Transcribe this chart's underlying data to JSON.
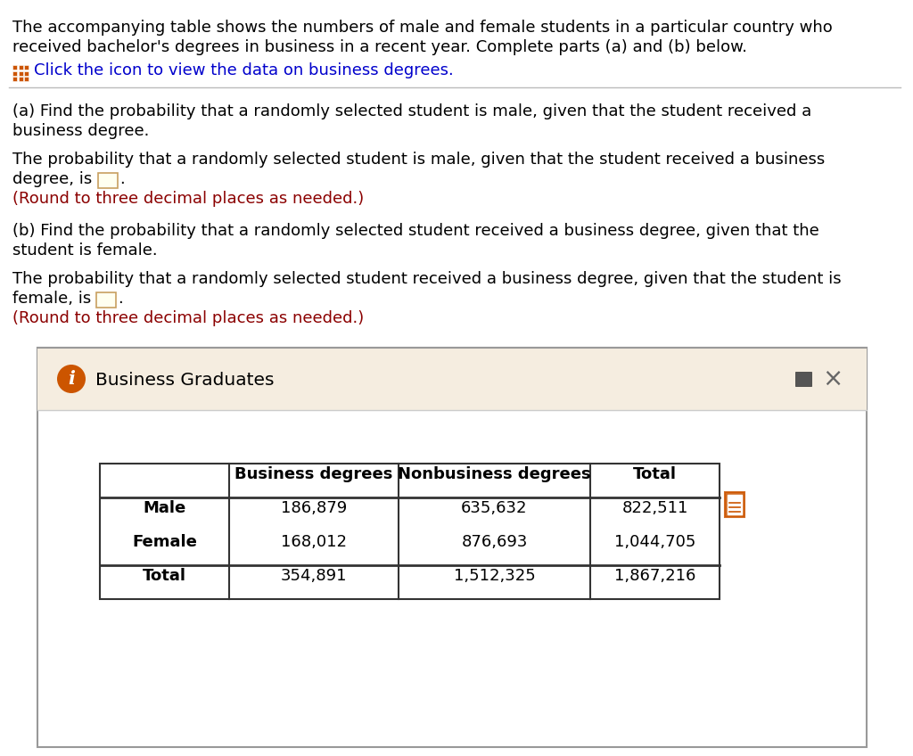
{
  "background_color": "#ffffff",
  "black_color": "#000000",
  "red_color": "#8b0000",
  "icon_orange": "#cc5500",
  "separator_color": "#bbbbbb",
  "dialog_border": "#aaaaaa",
  "dialog_title_bg": "#f5ede0",
  "table_border_color": "#333333",
  "header_line1": "The accompanying table shows the numbers of male and female students in a particular country who",
  "header_line2": "received bachelor's degrees in business in a recent year. Complete parts (a) and (b) below.",
  "icon_text": "Click the icon to view the data on business degrees.",
  "part_a_q_line1": "(a) Find the probability that a randomly selected student is male, given that the student received a",
  "part_a_q_line2": "business degree.",
  "part_a_ans_line1": "The probability that a randomly selected student is male, given that the student received a business",
  "part_a_ans_line2": "degree, is",
  "part_a_round": "(Round to three decimal places as needed.)",
  "part_b_q_line1": "(b) Find the probability that a randomly selected student received a business degree, given that the",
  "part_b_q_line2": "student is female.",
  "part_b_ans_line1": "The probability that a randomly selected student received a business degree, given that the student is",
  "part_b_ans_line2": "female, is",
  "part_b_round": "(Round to three decimal places as needed.)",
  "dialog_title": "Business Graduates",
  "table_headers": [
    "",
    "Business degrees",
    "Nonbusiness degrees",
    "Total"
  ],
  "table_rows": [
    [
      "Male",
      "186,879",
      "635,632",
      "822,511"
    ],
    [
      "Female",
      "168,012",
      "876,693",
      "1,044,705"
    ],
    [
      "Total",
      "354,891",
      "1,512,325",
      "1,867,216"
    ]
  ]
}
